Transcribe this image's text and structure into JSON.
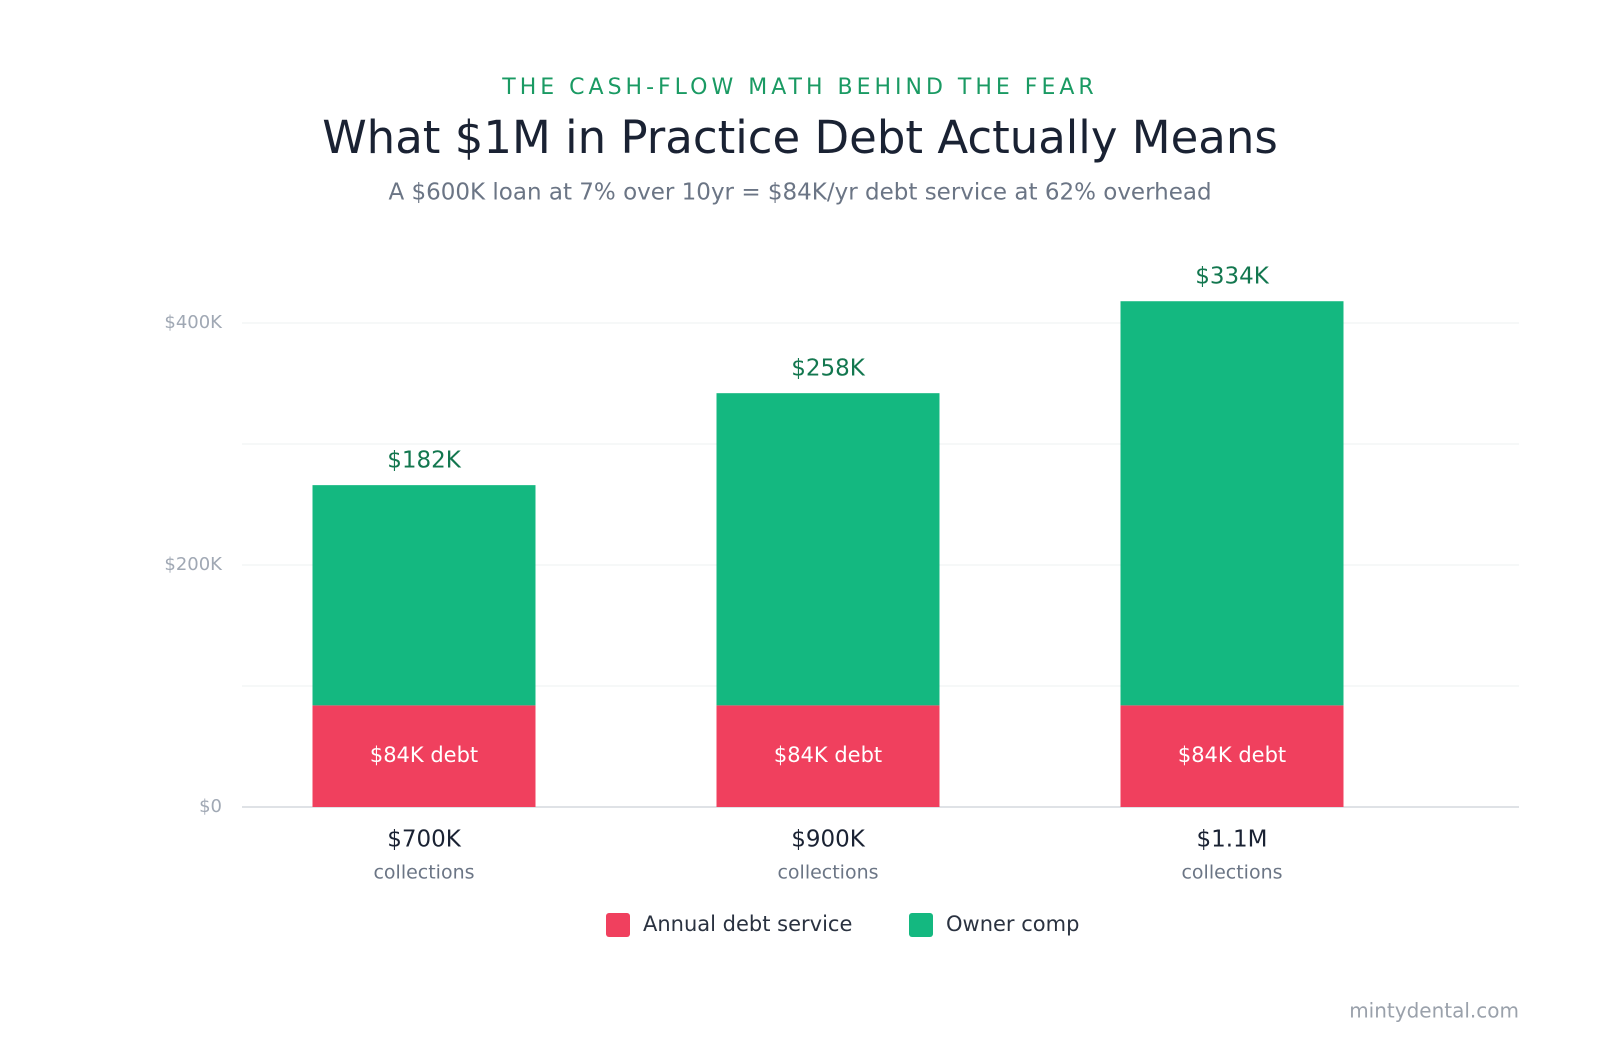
{
  "chart_data": {
    "type": "stacked_bar",
    "eyebrow": "THE CASH-FLOW MATH BEHIND THE FEAR",
    "title": "What $1M in Practice Debt Actually Means",
    "subtitle": "A $600K loan at 7% over 10yr = $84K/yr debt service at 62% overhead",
    "categories": [
      "$700K",
      "$900K",
      "$1.1M"
    ],
    "category_notes": [
      "collections",
      "collections",
      "collections"
    ],
    "series": [
      {
        "name": "Annual debt service",
        "color": "#f0405e",
        "values": [
          84000,
          84000,
          84000
        ],
        "value_labels": [
          "$84K debt",
          "$84K debt",
          "$84K debt"
        ]
      },
      {
        "name": "Owner comp",
        "color": "#14b880",
        "values": [
          182000,
          258000,
          334000
        ],
        "value_labels": [
          "$182K",
          "$258K",
          "$334K"
        ]
      }
    ],
    "ylim": [
      0,
      400000
    ],
    "yticks": [
      {
        "value": 0,
        "label": "$0"
      },
      {
        "value": 200000,
        "label": "$200K"
      },
      {
        "value": 400000,
        "label": "$400K"
      }
    ],
    "minor_yticks": [
      100000,
      300000
    ],
    "grid": true,
    "source": "mintydental.com"
  }
}
